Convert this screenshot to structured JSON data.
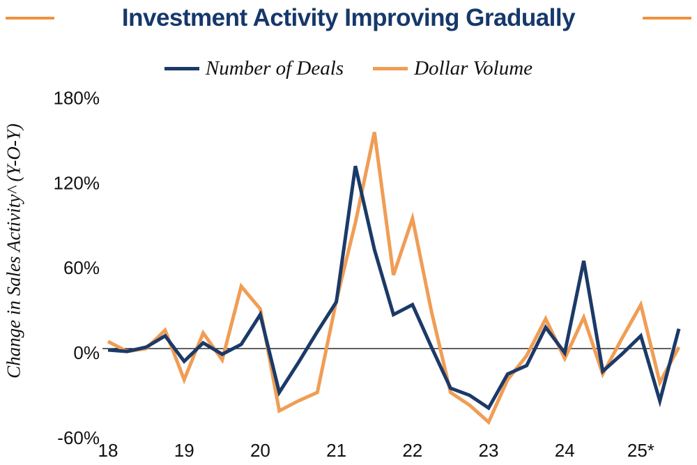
{
  "title": {
    "text": "Investment Activity Improving Gradually",
    "color": "#16386B",
    "dash_color": "#EF9140"
  },
  "legend": [
    {
      "label": "Number of Deals",
      "color": "#1B3A68"
    },
    {
      "label": "Dollar Volume",
      "color": "#F09D55"
    }
  ],
  "y_axis": {
    "title": "Change in Sales Activity^ (Y-O-Y)",
    "tick_labels": [
      "180%",
      "120%",
      "60%",
      "0%",
      "-60%"
    ]
  },
  "x_axis": {
    "labels": [
      "18",
      "19",
      "20",
      "21",
      "22",
      "23",
      "24",
      "25*"
    ]
  },
  "chart_data": {
    "type": "line",
    "title": "Investment Activity Improving Gradually",
    "ylabel": "Change in Sales Activity^ (Y-O-Y)",
    "unit": "%",
    "ylim": [
      -60,
      180
    ],
    "yticks": [
      180,
      120,
      60,
      0,
      -60
    ],
    "ytick_labels": [
      "180%",
      "120%",
      "60%",
      "0%",
      "-60%"
    ],
    "grid": false,
    "legend_position": "top",
    "x_labels": [
      "18",
      "19",
      "20",
      "21",
      "22",
      "23",
      "24",
      "25*"
    ],
    "quarters": [
      "2018Q1",
      "2018Q2",
      "2018Q3",
      "2018Q4",
      "2019Q1",
      "2019Q2",
      "2019Q3",
      "2019Q4",
      "2020Q1",
      "2020Q2",
      "2020Q3",
      "2020Q4",
      "2021Q1",
      "2021Q2",
      "2021Q3",
      "2021Q4",
      "2022Q1",
      "2022Q2",
      "2022Q3",
      "2022Q4",
      "2023Q1",
      "2023Q2",
      "2023Q3",
      "2023Q4",
      "2024Q1",
      "2024Q2",
      "2024Q3",
      "2024Q4",
      "2025Q1",
      "2025Q2",
      "2025Q3"
    ],
    "series": [
      {
        "name": "Number of Deals",
        "color": "#1B3A68",
        "values": [
          -1,
          -2,
          1,
          9,
          -9,
          4,
          -4,
          3,
          24,
          -31,
          -10,
          12,
          33,
          129,
          70,
          24,
          31,
          1,
          -28,
          -33,
          -42,
          -18,
          -12,
          15,
          -3,
          62,
          -16,
          -4,
          9,
          -37,
          14
        ]
      },
      {
        "name": "Dollar Volume",
        "color": "#F09D55",
        "values": [
          5,
          -2,
          0,
          13,
          -22,
          11,
          -8,
          44,
          28,
          -44,
          -37,
          -31,
          34,
          89,
          153,
          52,
          92,
          26,
          -31,
          -40,
          -52,
          -22,
          -5,
          21,
          -7,
          22,
          -18,
          7,
          31,
          -24,
          1
        ]
      }
    ]
  }
}
